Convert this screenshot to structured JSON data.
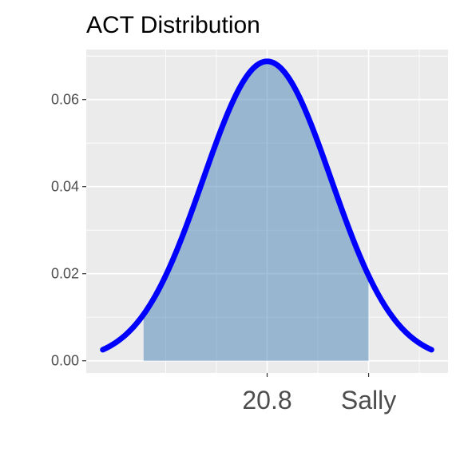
{
  "chart_data": {
    "type": "area",
    "title": "ACT Distribution",
    "xlabel": "",
    "ylabel": "",
    "xlim": [
      4.4,
      37.2
    ],
    "ylim": [
      -0.0028,
      0.0715
    ],
    "y_ticks": [
      0.0,
      0.02,
      0.04,
      0.06
    ],
    "y_tick_labels": [
      "0.00",
      "0.02",
      "0.04",
      "0.06"
    ],
    "x_ticks": [
      20.8,
      30
    ],
    "x_tick_labels": [
      "20.8",
      "Sally"
    ],
    "x_major_grid": [
      20.8,
      30
    ],
    "x_minor_grid": [
      11.6,
      16.2,
      25.4,
      34.6
    ],
    "y_minor_grid": [
      0.01,
      0.03,
      0.05,
      0.07
    ],
    "grid": true,
    "curve": {
      "mean": 20.8,
      "sd": 5.8,
      "x_range": [
        5.9,
        35.7
      ],
      "color": "#0000ff"
    },
    "shade": {
      "from": 9.6,
      "to": 30,
      "color": "#4682b4"
    },
    "colors": {
      "panel": "#ebebeb",
      "grid": "#ffffff",
      "axis_text": "#4d4d4d",
      "tick": "#333333"
    }
  }
}
